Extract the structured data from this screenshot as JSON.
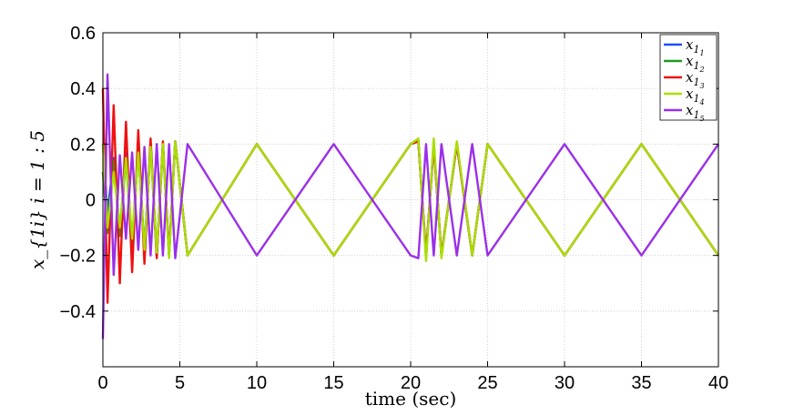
{
  "chart_data": {
    "type": "line",
    "title": "",
    "xlabel": "time (sec)",
    "ylabel": "x_{1i} i = 1 : 5",
    "xlim": [
      0,
      40
    ],
    "ylim": [
      -0.6,
      0.6
    ],
    "xticks": [
      0,
      5,
      10,
      15,
      20,
      25,
      30,
      35,
      40
    ],
    "xtick_labels": [
      "0",
      "5",
      "10",
      "15",
      "20",
      "25",
      "30",
      "35",
      "40"
    ],
    "yticks": [
      0.6,
      0.4,
      0.2,
      0,
      -0.2,
      -0.4
    ],
    "ytick_labels": [
      "0.6",
      "0.4",
      "0.2",
      "0",
      "−0.2",
      "−0.4"
    ],
    "grid": true,
    "legend_position": "top-right",
    "series": [
      {
        "name": "x_{1_1}",
        "legend_base": "x",
        "legend_sub": "1",
        "legend_subsub": "1",
        "color": "#1f4fff",
        "x": [
          0,
          0.3,
          0.7,
          1.1,
          1.5,
          1.9,
          2.3,
          2.7,
          3.1,
          3.5,
          3.9,
          4.3,
          4.7,
          5.5,
          10,
          15,
          20,
          20.5,
          21,
          21.5,
          22,
          23,
          24,
          25,
          30,
          35,
          40
        ],
        "y": [
          0.2,
          -0.05,
          0.15,
          -0.12,
          0.17,
          -0.16,
          0.19,
          -0.18,
          0.2,
          -0.2,
          0.2,
          -0.2,
          0.21,
          -0.2,
          0.2,
          -0.2,
          0.2,
          0.21,
          -0.2,
          0.2,
          -0.2,
          0.2,
          -0.2,
          0.2,
          -0.2,
          0.2,
          -0.2
        ]
      },
      {
        "name": "x_{1_2}",
        "legend_base": "x",
        "legend_sub": "1",
        "legend_subsub": "2",
        "color": "#1f9a1f",
        "x": [
          0,
          0.3,
          0.7,
          1.1,
          1.5,
          1.9,
          2.3,
          2.7,
          3.1,
          3.5,
          3.9,
          4.3,
          4.7,
          5.5,
          10,
          15,
          20,
          20.5,
          21,
          21.5,
          22,
          23,
          24,
          25,
          30,
          35,
          40
        ],
        "y": [
          0.1,
          -0.12,
          0.14,
          -0.13,
          0.15,
          -0.17,
          0.18,
          -0.19,
          0.2,
          -0.2,
          0.2,
          -0.2,
          0.21,
          -0.2,
          0.2,
          -0.2,
          0.2,
          0.21,
          -0.2,
          0.2,
          -0.2,
          0.2,
          -0.2,
          0.2,
          -0.2,
          0.2,
          -0.2
        ]
      },
      {
        "name": "x_{1_3}",
        "legend_base": "x",
        "legend_sub": "1",
        "legend_subsub": "3",
        "color": "#ee1111",
        "x": [
          0,
          0.3,
          0.7,
          1.1,
          1.5,
          1.9,
          2.3,
          2.7,
          3.1,
          3.5,
          3.9,
          4.3,
          4.7,
          5.5,
          10,
          15,
          20,
          20.5,
          21,
          21.5,
          22,
          23,
          24,
          25,
          30,
          35,
          40
        ],
        "y": [
          0.4,
          -0.37,
          0.34,
          -0.3,
          0.28,
          -0.26,
          0.25,
          -0.23,
          0.22,
          -0.21,
          0.21,
          -0.2,
          0.21,
          -0.2,
          0.2,
          -0.2,
          0.2,
          0.21,
          -0.2,
          0.2,
          -0.2,
          0.2,
          -0.2,
          0.2,
          -0.2,
          0.2,
          -0.2
        ]
      },
      {
        "name": "x_{1_4}",
        "legend_base": "x",
        "legend_sub": "1",
        "legend_subsub": "4",
        "color": "#aadd00",
        "x": [
          0,
          0.3,
          0.7,
          1.1,
          1.5,
          1.9,
          2.3,
          2.7,
          3.1,
          3.5,
          3.9,
          4.3,
          4.7,
          5.5,
          10,
          15,
          20,
          20.5,
          21,
          21.5,
          22,
          23,
          24,
          25,
          30,
          35,
          40
        ],
        "y": [
          0.2,
          -0.1,
          0.1,
          -0.1,
          0.15,
          -0.14,
          0.17,
          -0.18,
          0.19,
          -0.19,
          0.2,
          -0.21,
          0.21,
          -0.2,
          0.2,
          -0.2,
          0.2,
          0.22,
          -0.22,
          0.22,
          -0.21,
          0.21,
          -0.2,
          0.2,
          -0.2,
          0.2,
          -0.2
        ]
      },
      {
        "name": "x_{1_5}",
        "legend_base": "x",
        "legend_sub": "1",
        "legend_subsub": "5",
        "color": "#9b2fe8",
        "x": [
          0,
          0.3,
          0.7,
          1.1,
          1.5,
          1.9,
          2.3,
          2.7,
          3.1,
          3.5,
          3.9,
          4.3,
          4.7,
          5.5,
          10,
          15,
          20,
          20.5,
          21,
          21.5,
          22,
          23,
          24,
          25,
          30,
          35,
          40
        ],
        "y": [
          -0.5,
          0.45,
          -0.27,
          0.16,
          -0.14,
          0.17,
          -0.18,
          0.19,
          -0.2,
          0.2,
          -0.2,
          0.2,
          -0.21,
          0.2,
          -0.2,
          0.2,
          -0.2,
          -0.21,
          0.2,
          -0.2,
          0.2,
          -0.2,
          0.2,
          -0.2,
          0.2,
          -0.2,
          0.2
        ]
      }
    ]
  }
}
